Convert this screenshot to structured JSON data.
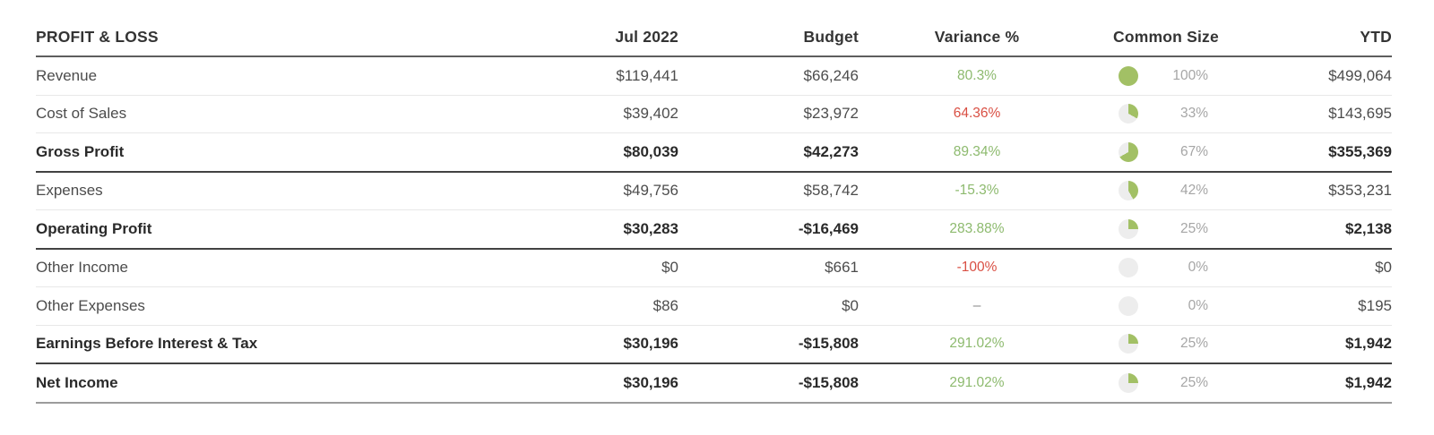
{
  "report": {
    "header": {
      "title": "PROFIT & LOSS",
      "period": "Jul 2022",
      "budget": "Budget",
      "variance": "Variance %",
      "common_size": "Common Size",
      "ytd": "YTD"
    },
    "rows": [
      {
        "label": "Revenue",
        "bold": false,
        "period": "$119,441",
        "budget": "$66,246",
        "variance": "80.3%",
        "variance_tone": "positive",
        "common_size_pct": 100,
        "common_size_label": "100%",
        "ytd": "$499,064",
        "divider": "light"
      },
      {
        "label": "Cost of Sales",
        "bold": false,
        "period": "$39,402",
        "budget": "$23,972",
        "variance": "64.36%",
        "variance_tone": "negative",
        "common_size_pct": 33,
        "common_size_label": "33%",
        "ytd": "$143,695",
        "divider": "light"
      },
      {
        "label": "Gross Profit",
        "bold": true,
        "period": "$80,039",
        "budget": "$42,273",
        "variance": "89.34%",
        "variance_tone": "positive",
        "common_size_pct": 67,
        "common_size_label": "67%",
        "ytd": "$355,369",
        "divider": "dark"
      },
      {
        "label": "Expenses",
        "bold": false,
        "period": "$49,756",
        "budget": "$58,742",
        "variance": "-15.3%",
        "variance_tone": "positive",
        "common_size_pct": 42,
        "common_size_label": "42%",
        "ytd": "$353,231",
        "divider": "light"
      },
      {
        "label": "Operating Profit",
        "bold": true,
        "period": "$30,283",
        "budget": "-$16,469",
        "variance": "283.88%",
        "variance_tone": "positive",
        "common_size_pct": 25,
        "common_size_label": "25%",
        "ytd": "$2,138",
        "divider": "dark"
      },
      {
        "label": "Other Income",
        "bold": false,
        "period": "$0",
        "budget": "$661",
        "variance": "-100%",
        "variance_tone": "negative",
        "common_size_pct": 0,
        "common_size_label": "0%",
        "ytd": "$0",
        "divider": "light"
      },
      {
        "label": "Other Expenses",
        "bold": false,
        "period": "$86",
        "budget": "$0",
        "variance": "–",
        "variance_tone": "neutral",
        "common_size_pct": 0,
        "common_size_label": "0%",
        "ytd": "$195",
        "divider": "light"
      },
      {
        "label": "Earnings Before Interest & Tax",
        "bold": true,
        "period": "$30,196",
        "budget": "-$15,808",
        "variance": "291.02%",
        "variance_tone": "positive",
        "common_size_pct": 25,
        "common_size_label": "25%",
        "ytd": "$1,942",
        "divider": "dark"
      },
      {
        "label": "Net Income",
        "bold": true,
        "period": "$30,196",
        "budget": "-$15,808",
        "variance": "291.02%",
        "variance_tone": "positive",
        "common_size_pct": 25,
        "common_size_label": "25%",
        "ytd": "$1,942",
        "divider": "final"
      }
    ],
    "colors": {
      "positive_text": "#8dba6e",
      "negative_text": "#d94f43",
      "neutral_text": "#8a8a8a",
      "pie_fill": "#a2c065",
      "pie_track": "#ededed",
      "common_size_text": "#a6a6a6"
    }
  }
}
